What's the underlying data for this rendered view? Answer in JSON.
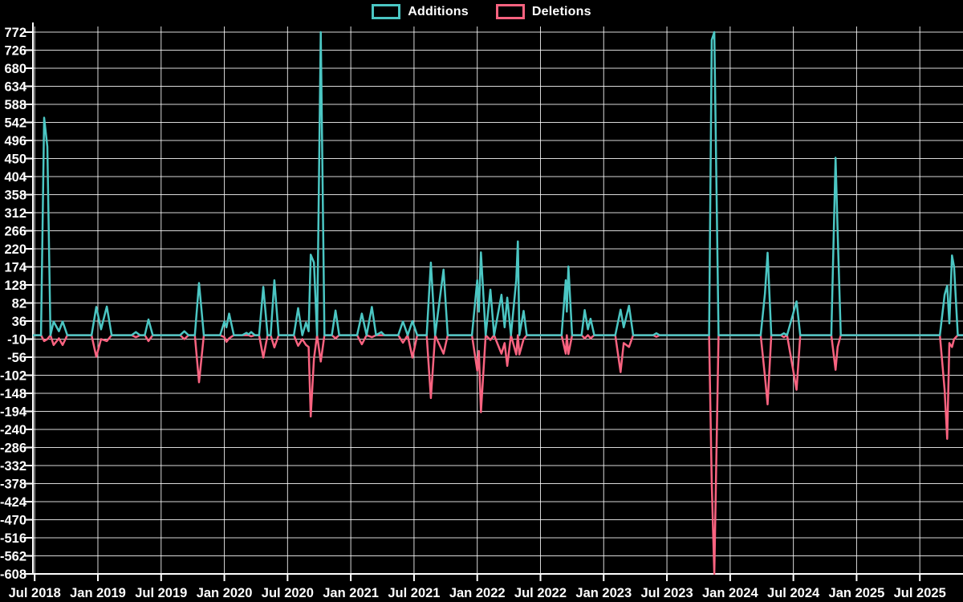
{
  "chart": {
    "background": "#000000",
    "text_color": "#ffffff",
    "grid_color": "#ffffff",
    "legend": {
      "position": "top-center",
      "items": [
        {
          "label": "Additions",
          "color": "#4BC6C3"
        },
        {
          "label": "Deletions",
          "color": "#F96380"
        }
      ]
    }
  },
  "chart_data": {
    "type": "line",
    "title": "",
    "legend_position": "top-center",
    "grid": true,
    "x_unit": "months since Jul 2018 tick (weekly code-frequency style series, spikes approximated)",
    "x_tick_labels": [
      "Jul 2018",
      "Jan 2019",
      "Jul 2019",
      "Jan 2020",
      "Jul 2020",
      "Jan 2021",
      "Jul 2021",
      "Jan 2022",
      "Jul 2022",
      "Jan 2023",
      "Jul 2023",
      "Jan 2024",
      "Jul 2024",
      "Jan 2025",
      "Jul 2025"
    ],
    "x_tick_positions": [
      0,
      6,
      12,
      18,
      24,
      30,
      36,
      42,
      48,
      54,
      60,
      66,
      72,
      78,
      84
    ],
    "y_ticks": [
      772,
      726,
      680,
      634,
      588,
      542,
      496,
      450,
      404,
      358,
      312,
      266,
      220,
      174,
      128,
      82,
      36,
      -10,
      -56,
      -102,
      -148,
      -194,
      -240,
      -286,
      -332,
      -378,
      -424,
      -470,
      -516,
      -562,
      -608
    ],
    "ylim": [
      -608,
      772
    ],
    "xlim_months": [
      -0.3,
      88.2
    ],
    "series": [
      {
        "name": "Additions",
        "color": "#4BC6C3",
        "value_index": 1
      },
      {
        "name": "Deletions",
        "color": "#F96380",
        "value_index": 2
      }
    ],
    "points": [
      [
        -1.0,
        0,
        0
      ],
      [
        0.6,
        0,
        0
      ],
      [
        0.9,
        554,
        -15
      ],
      [
        1.2,
        480,
        -10
      ],
      [
        1.5,
        0,
        0
      ],
      [
        1.8,
        35,
        -25
      ],
      [
        2.3,
        10,
        -8
      ],
      [
        2.65,
        35,
        -25
      ],
      [
        3.1,
        0,
        0
      ],
      [
        5.4,
        0,
        0
      ],
      [
        5.85,
        72,
        -55
      ],
      [
        6.3,
        15,
        -10
      ],
      [
        6.85,
        73,
        -15
      ],
      [
        7.3,
        0,
        0
      ],
      [
        9.2,
        0,
        0
      ],
      [
        9.6,
        8,
        -5
      ],
      [
        10.0,
        0,
        0
      ],
      [
        10.45,
        0,
        0
      ],
      [
        10.8,
        40,
        -15
      ],
      [
        11.2,
        0,
        0
      ],
      [
        13.8,
        0,
        0
      ],
      [
        14.2,
        10,
        -10
      ],
      [
        14.6,
        0,
        0
      ],
      [
        15.2,
        0,
        0
      ],
      [
        15.6,
        133,
        -120
      ],
      [
        16.05,
        0,
        0
      ],
      [
        17.6,
        0,
        0
      ],
      [
        18.0,
        35,
        -5
      ],
      [
        18.2,
        20,
        -17
      ],
      [
        18.45,
        55,
        -8
      ],
      [
        18.9,
        0,
        0
      ],
      [
        19.7,
        0,
        0
      ],
      [
        20.1,
        6,
        0
      ],
      [
        20.3,
        2,
        0
      ],
      [
        20.55,
        8,
        -3
      ],
      [
        20.9,
        0,
        0
      ],
      [
        21.3,
        0,
        0
      ],
      [
        21.7,
        123,
        -57
      ],
      [
        22.1,
        0,
        0
      ],
      [
        22.4,
        0,
        0
      ],
      [
        22.75,
        140,
        -31
      ],
      [
        23.15,
        0,
        0
      ],
      [
        24.6,
        0,
        0
      ],
      [
        25.0,
        69,
        -27
      ],
      [
        25.4,
        0,
        -10
      ],
      [
        25.75,
        32,
        -25
      ],
      [
        26.0,
        10,
        -30
      ],
      [
        26.2,
        205,
        -207
      ],
      [
        26.5,
        185,
        -60
      ],
      [
        26.8,
        0,
        0
      ],
      [
        27.15,
        772,
        -67
      ],
      [
        27.5,
        0,
        0
      ],
      [
        28.2,
        0,
        0
      ],
      [
        28.55,
        63,
        -8
      ],
      [
        28.9,
        0,
        0
      ],
      [
        30.6,
        0,
        0
      ],
      [
        31.05,
        55,
        -23
      ],
      [
        31.5,
        0,
        0
      ],
      [
        32.0,
        72,
        -5
      ],
      [
        32.4,
        0,
        0
      ],
      [
        32.9,
        8,
        0
      ],
      [
        33.2,
        0,
        0
      ],
      [
        34.5,
        0,
        0
      ],
      [
        34.95,
        35,
        -19
      ],
      [
        35.4,
        0,
        0
      ],
      [
        35.85,
        36,
        -57
      ],
      [
        36.3,
        0,
        0
      ],
      [
        37.2,
        0,
        0
      ],
      [
        37.6,
        185,
        -160
      ],
      [
        38.0,
        0,
        0
      ],
      [
        38.8,
        167,
        -47
      ],
      [
        39.2,
        0,
        0
      ],
      [
        41.5,
        0,
        0
      ],
      [
        42.0,
        140,
        -90
      ],
      [
        42.15,
        60,
        -40
      ],
      [
        42.35,
        211,
        -196
      ],
      [
        42.8,
        0,
        0
      ],
      [
        43.25,
        116,
        -12
      ],
      [
        43.6,
        0,
        0
      ],
      [
        44.3,
        103,
        -47
      ],
      [
        44.6,
        20,
        -20
      ],
      [
        44.85,
        96,
        -78
      ],
      [
        45.2,
        0,
        0
      ],
      [
        45.7,
        140,
        -49
      ],
      [
        45.85,
        239,
        0
      ],
      [
        46.0,
        0,
        -49
      ],
      [
        46.4,
        62,
        -10
      ],
      [
        46.7,
        0,
        0
      ],
      [
        50.0,
        0,
        0
      ],
      [
        50.4,
        140,
        -47
      ],
      [
        50.5,
        60,
        0
      ],
      [
        50.65,
        175,
        -48
      ],
      [
        51.0,
        0,
        0
      ],
      [
        51.9,
        0,
        0
      ],
      [
        52.2,
        64,
        -8
      ],
      [
        52.5,
        15,
        0
      ],
      [
        52.75,
        42,
        -8
      ],
      [
        53.1,
        0,
        0
      ],
      [
        55.1,
        0,
        0
      ],
      [
        55.6,
        65,
        -94
      ],
      [
        55.9,
        20,
        -20
      ],
      [
        56.4,
        75,
        -30
      ],
      [
        56.8,
        0,
        0
      ],
      [
        58.7,
        0,
        0
      ],
      [
        59.0,
        5,
        -4
      ],
      [
        59.3,
        0,
        0
      ],
      [
        64.0,
        0,
        0
      ],
      [
        64.25,
        752,
        -376
      ],
      [
        64.5,
        772,
        -608
      ],
      [
        64.9,
        0,
        0
      ],
      [
        68.9,
        0,
        0
      ],
      [
        69.3,
        106,
        -105
      ],
      [
        69.55,
        210,
        -176
      ],
      [
        69.9,
        0,
        0
      ],
      [
        70.8,
        0,
        0
      ],
      [
        71.1,
        5,
        -5
      ],
      [
        71.4,
        0,
        0
      ],
      [
        72.3,
        86,
        -139
      ],
      [
        72.65,
        0,
        0
      ],
      [
        75.6,
        0,
        0
      ],
      [
        76.0,
        452,
        -88
      ],
      [
        76.2,
        262,
        -30
      ],
      [
        76.5,
        0,
        0
      ],
      [
        85.9,
        0,
        0
      ],
      [
        86.35,
        103,
        -139
      ],
      [
        86.6,
        126,
        -264
      ],
      [
        86.8,
        30,
        -20
      ],
      [
        87.05,
        203,
        -30
      ],
      [
        87.25,
        174,
        -10
      ],
      [
        87.6,
        0,
        0
      ],
      [
        88.1,
        0,
        0
      ]
    ]
  }
}
